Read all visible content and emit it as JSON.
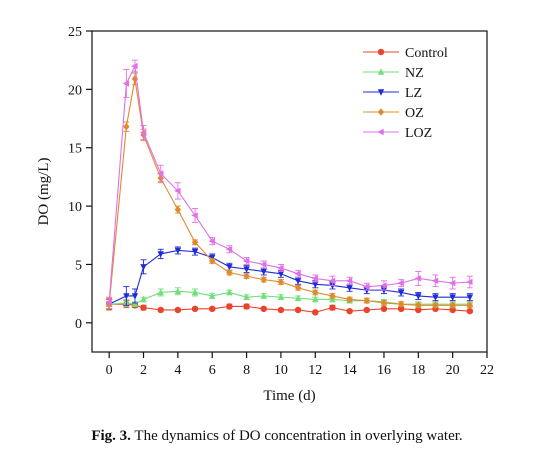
{
  "figure": {
    "caption_label": "Fig. 3.",
    "caption_text": " The dynamics of DO concentration in overlying water."
  },
  "chart_data": {
    "type": "line",
    "title": "",
    "xlabel": "Time (d)",
    "ylabel": "DO (mg/L)",
    "xlim": [
      -1,
      22
    ],
    "ylim": [
      -2.5,
      25
    ],
    "xticks": [
      0,
      2,
      4,
      6,
      8,
      10,
      12,
      14,
      16,
      18,
      20,
      22
    ],
    "yticks": [
      0,
      5,
      10,
      15,
      20,
      25
    ],
    "grid": false,
    "legend_position": "top-right",
    "x": [
      0,
      1,
      1.5,
      2,
      3,
      4,
      5,
      6,
      7,
      8,
      9,
      10,
      11,
      12,
      13,
      14,
      15,
      16,
      17,
      18,
      19,
      20,
      21
    ],
    "series": [
      {
        "name": "Control",
        "color": "#e8452c",
        "marker": "circle",
        "values": [
          1.6,
          1.6,
          1.5,
          1.3,
          1.1,
          1.1,
          1.2,
          1.2,
          1.4,
          1.4,
          1.2,
          1.1,
          1.1,
          0.9,
          1.3,
          1.0,
          1.1,
          1.2,
          1.2,
          1.1,
          1.2,
          1.1,
          1.0
        ],
        "errors": [
          0.5,
          0.3,
          0.2,
          0.2,
          0.1,
          0.1,
          0.1,
          0.1,
          0.2,
          0.2,
          0.1,
          0.1,
          0.1,
          0.1,
          0.2,
          0.1,
          0.1,
          0.1,
          0.1,
          0.1,
          0.1,
          0.1,
          0.1
        ]
      },
      {
        "name": "NZ",
        "color": "#6fe07a",
        "marker": "triangle-up",
        "values": [
          1.6,
          1.7,
          1.6,
          2.0,
          2.6,
          2.7,
          2.6,
          2.3,
          2.6,
          2.2,
          2.3,
          2.2,
          2.1,
          2.0,
          2.0,
          1.9,
          1.9,
          1.8,
          1.6,
          1.6,
          1.6,
          1.6,
          1.6
        ],
        "errors": [
          0.4,
          0.3,
          0.2,
          0.2,
          0.3,
          0.3,
          0.3,
          0.2,
          0.2,
          0.2,
          0.2,
          0.2,
          0.2,
          0.2,
          0.2,
          0.2,
          0.2,
          0.2,
          0.2,
          0.2,
          0.2,
          0.2,
          0.2
        ]
      },
      {
        "name": "LZ",
        "color": "#1f2bd6",
        "marker": "triangle-down",
        "values": [
          1.6,
          2.3,
          2.3,
          4.8,
          5.9,
          6.2,
          6.1,
          5.6,
          4.8,
          4.6,
          4.4,
          4.2,
          3.6,
          3.3,
          3.2,
          3.0,
          2.8,
          2.8,
          2.6,
          2.3,
          2.2,
          2.2,
          2.2
        ],
        "errors": [
          0.4,
          0.8,
          0.6,
          0.6,
          0.4,
          0.3,
          0.3,
          0.3,
          0.3,
          0.3,
          0.3,
          0.3,
          0.3,
          0.3,
          0.3,
          0.3,
          0.3,
          0.3,
          0.3,
          0.3,
          0.3,
          0.3,
          0.3
        ]
      },
      {
        "name": "OZ",
        "color": "#e08a2e",
        "marker": "diamond",
        "values": [
          1.6,
          16.8,
          20.9,
          16.1,
          12.4,
          9.7,
          6.9,
          5.3,
          4.3,
          4.0,
          3.7,
          3.5,
          3.0,
          2.6,
          2.3,
          2.0,
          1.9,
          1.7,
          1.6,
          1.5,
          1.5,
          1.5,
          1.5
        ],
        "errors": [
          0.4,
          0.4,
          0.5,
          0.5,
          0.4,
          0.3,
          0.2,
          0.2,
          0.2,
          0.2,
          0.2,
          0.2,
          0.2,
          0.2,
          0.2,
          0.2,
          0.2,
          0.2,
          0.2,
          0.2,
          0.2,
          0.2,
          0.2
        ]
      },
      {
        "name": "LOZ",
        "color": "#e070e8",
        "marker": "triangle-left",
        "values": [
          1.8,
          20.5,
          22.0,
          16.3,
          12.8,
          11.3,
          9.2,
          7.0,
          6.3,
          5.3,
          5.0,
          4.7,
          4.2,
          3.8,
          3.6,
          3.6,
          3.1,
          3.2,
          3.4,
          3.8,
          3.6,
          3.4,
          3.5
        ],
        "errors": [
          0.4,
          1.2,
          0.5,
          0.6,
          0.7,
          0.7,
          0.6,
          0.3,
          0.3,
          0.3,
          0.3,
          0.3,
          0.3,
          0.3,
          0.4,
          0.3,
          0.3,
          0.4,
          0.3,
          0.6,
          0.5,
          0.5,
          0.5
        ]
      }
    ]
  }
}
